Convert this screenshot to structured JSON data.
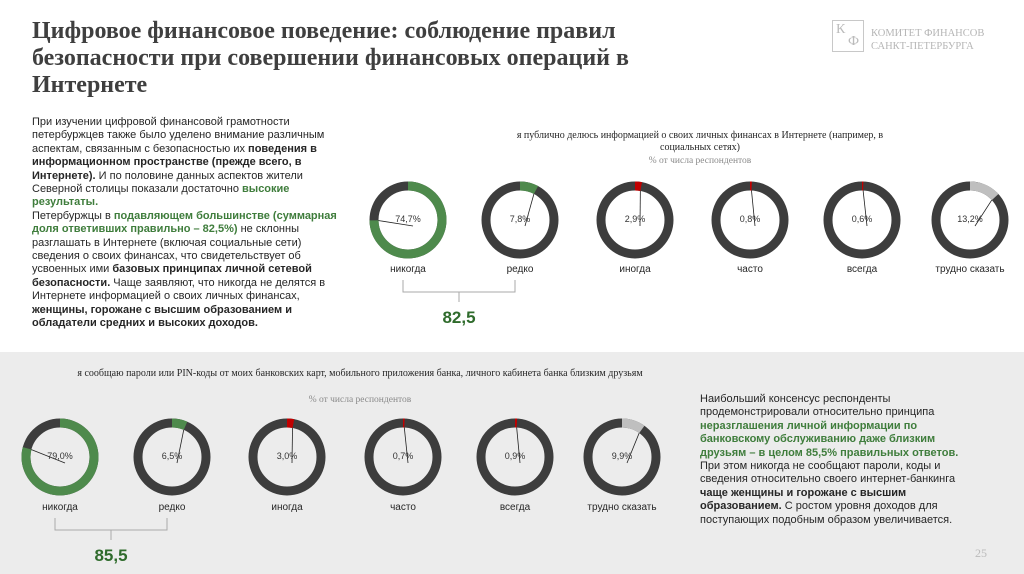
{
  "header": {
    "title": "Цифровое финансовое поведение: соблюдение правил безопасности при совершении финансовых операций в Интернете",
    "logo_letters": [
      "К",
      "Ф"
    ],
    "logo_text": [
      "КОМИТЕТ ФИНАНСОВ",
      "САНКТ-ПЕТЕРБУРГА"
    ]
  },
  "left_text": [
    "При изучении цифровой финансовой грамотности петербуржцев также было уделено внимание различным аспектам, связанным с безопасностью их ",
    "поведения в информационном пространстве (прежде всего, в Интернете).",
    "  И по половине данных аспектов жители Северной столицы показали достаточно ",
    "высокие результаты.",
    "Петербуржцы в ",
    "подавляющем большинстве (суммарная доля ответивших правильно – 82,5%)",
    " не склонны разглашать в Интернете (включая социальные сети) сведения о своих финансах, что свидетельствует об усвоенных ими ",
    "базовых принципах личной сетевой безопасности.",
    " Чаще заявляют, что никогда не делятся в Интернете информацией о своих личных финансах, ",
    "женщины, горожане с высшим образованием и обладатели средних и высоких доходов."
  ],
  "right_text": [
    "Наибольший консенсус респонденты продемонстрировали относительно принципа ",
    "неразглашения личной информации по банковскому обслуживанию даже близким друзьям – в целом 85,5% правильных ответов.",
    " При этом никогда не сообщают пароли, коды и сведения относительно своего интернет-банкинга ",
    "чаще женщины и горожане с высшим образованием.",
    " С ростом уровня доходов для поступающих подобным образом увеличивается."
  ],
  "page_number": "25",
  "chart_data": [
    {
      "type": "donut",
      "title": "я публично делюсь информацией о своих личных финансах в Интернете (например, в социальных сетях)",
      "subtitle": "% от числа респондентов",
      "categories": [
        "никогда",
        "редко",
        "иногда",
        "часто",
        "всегда",
        "трудно сказать"
      ],
      "values": [
        74.7,
        7.8,
        2.9,
        0.8,
        0.6,
        13.2
      ],
      "value_labels": [
        "74,7%",
        "7,8%",
        "2,9%",
        "0,8%",
        "0,6%",
        "13,2%"
      ],
      "colors": [
        "#4e8a4c",
        "#4e8a4c",
        "#c00000",
        "#c00000",
        "#c00000",
        "#bfbfbf"
      ],
      "ring_color": "#3d3d3d",
      "annotation": "82,5"
    },
    {
      "type": "donut",
      "title": "я сообщаю пароли или PIN-коды от моих банковских карт, мобильного приложения банка, личного кабинета банка близким друзьям",
      "subtitle": "% от числа респондентов",
      "categories": [
        "никогда",
        "редко",
        "иногда",
        "часто",
        "всегда",
        "трудно сказать"
      ],
      "values": [
        79.0,
        6.5,
        3.0,
        0.7,
        0.9,
        9.9
      ],
      "value_labels": [
        "79,0%",
        "6,5%",
        "3,0%",
        "0,7%",
        "0,9%",
        "9,9%"
      ],
      "colors": [
        "#4e8a4c",
        "#4e8a4c",
        "#c00000",
        "#c00000",
        "#c00000",
        "#bfbfbf"
      ],
      "ring_color": "#3d3d3d",
      "annotation": "85,5"
    }
  ]
}
